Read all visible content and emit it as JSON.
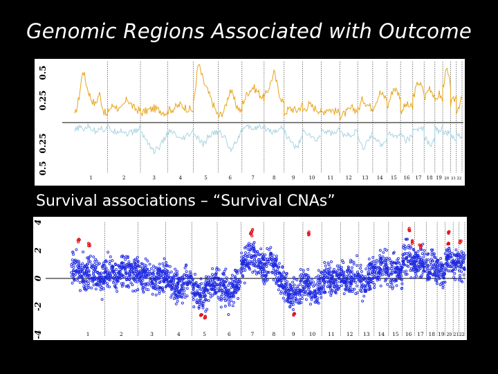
{
  "title": "Genomic Regions Associated with Outcome",
  "subtitle": "Survival associations – “Survival CNAs”",
  "chromosomes": [
    "1",
    "2",
    "3",
    "4",
    "5",
    "6",
    "7",
    "8",
    "9",
    "10",
    "11",
    "12",
    "13",
    "14",
    "15",
    "16",
    "17",
    "18",
    "19",
    "20",
    "21",
    "22"
  ],
  "colors": {
    "gain": "#e8a317",
    "loss": "#a9d3e0",
    "survival_points": "#1f2ae0",
    "significant_points": "#e0101a",
    "chromosome_boundary": "#555555"
  },
  "chart_data": [
    {
      "type": "area",
      "title": "",
      "y_ticks_top": [
        "0.5",
        "0.25"
      ],
      "y_ticks_bottom": [
        "0.25",
        "0.5"
      ],
      "ylim": [
        -0.5,
        0.5
      ],
      "series": [
        {
          "name": "",
          "color": "#e8a317",
          "values_by_chromosome": [
            [
              0.05,
              0.2,
              0.45,
              0.3,
              0.2,
              0.15,
              0.25,
              0.1,
              0.05
            ],
            [
              0.1,
              0.15,
              0.1,
              0.2,
              0.12,
              0.1
            ],
            [
              0.08,
              0.1,
              0.12,
              0.1,
              0.08
            ],
            [
              0.1,
              0.12,
              0.15,
              0.12,
              0.1
            ],
            [
              0.15,
              0.5,
              0.35,
              0.25,
              0.15,
              0.05
            ],
            [
              0.05,
              0.1,
              0.28,
              0.15,
              0.08
            ],
            [
              0.15,
              0.25,
              0.3,
              0.25,
              0.2
            ],
            [
              0.2,
              0.3,
              0.42,
              0.25,
              0.15
            ],
            [
              0.08,
              0.12,
              0.1,
              0.15
            ],
            [
              0.1,
              0.15,
              0.12,
              0.1
            ],
            [
              0.08,
              0.12,
              0.1,
              0.08
            ],
            [
              0.05,
              0.08,
              0.12,
              0.1
            ],
            [
              0.1,
              0.2,
              0.15,
              0.12
            ],
            [
              0.12,
              0.25,
              0.2
            ],
            [
              0.12,
              0.3,
              0.22
            ],
            [
              0.1,
              0.15,
              0.12
            ],
            [
              0.2,
              0.35,
              0.25
            ],
            [
              0.2,
              0.3,
              0.22
            ],
            [
              0.15,
              0.25,
              0.18
            ],
            [
              0.3,
              0.45,
              0.3
            ],
            [
              0.15,
              0.22
            ],
            [
              0.1,
              0.2
            ]
          ]
        },
        {
          "name": "",
          "color": "#a9d3e0",
          "values_by_chromosome": [
            [
              -0.1,
              -0.05,
              -0.08,
              -0.04,
              -0.06,
              -0.1,
              -0.05,
              -0.08,
              -0.05
            ],
            [
              -0.05,
              -0.1,
              -0.08,
              -0.12,
              -0.1,
              -0.06
            ],
            [
              -0.1,
              -0.2,
              -0.32,
              -0.25,
              -0.12
            ],
            [
              -0.1,
              -0.12,
              -0.2,
              -0.15,
              -0.1
            ],
            [
              -0.12,
              -0.18,
              -0.25,
              -0.15,
              -0.12,
              -0.1
            ],
            [
              -0.1,
              -0.15,
              -0.3,
              -0.2,
              -0.1
            ],
            [
              -0.08,
              -0.05,
              -0.06,
              -0.05,
              -0.08
            ],
            [
              -0.05,
              -0.08,
              -0.1,
              -0.06,
              -0.05
            ],
            [
              -0.1,
              -0.2,
              -0.28,
              -0.15
            ],
            [
              -0.1,
              -0.12,
              -0.2,
              -0.15
            ],
            [
              -0.08,
              -0.1,
              -0.12,
              -0.08
            ],
            [
              -0.1,
              -0.15,
              -0.12,
              -0.1
            ],
            [
              -0.15,
              -0.3,
              -0.2,
              -0.12
            ],
            [
              -0.12,
              -0.25,
              -0.18
            ],
            [
              -0.1,
              -0.15,
              -0.12
            ],
            [
              -0.12,
              -0.2,
              -0.15
            ],
            [
              -0.05,
              -0.08,
              -0.06
            ],
            [
              -0.15,
              -0.25,
              -0.2
            ],
            [
              -0.05,
              -0.1,
              -0.06
            ],
            [
              -0.08,
              -0.12,
              -0.1
            ],
            [
              -0.15,
              -0.2
            ],
            [
              -0.1,
              -0.18
            ]
          ]
        }
      ]
    },
    {
      "type": "scatter",
      "title": "",
      "y_ticks": [
        "4",
        "2",
        "0",
        "-2",
        "-4"
      ],
      "ylim": [
        -4,
        4
      ],
      "series": [
        {
          "name": "",
          "color": "#1f2ae0",
          "levels_by_chromosome": [
            [
              0.3,
              0.8,
              0.5,
              0.4,
              0.2,
              0.6,
              0.3,
              -0.3,
              0.2
            ],
            [
              0.4,
              0.6,
              0.2,
              0.8,
              0.4,
              0.3
            ],
            [
              0.2,
              0.3,
              0.1,
              -0.2,
              0.3
            ],
            [
              0.2,
              -0.3,
              -0.6,
              -0.2,
              0.1
            ],
            [
              -0.5,
              -1.0,
              -1.4,
              -0.8,
              -0.4,
              -0.2
            ],
            [
              -0.3,
              -0.6,
              -1.2,
              -0.5,
              -0.2
            ],
            [
              0.8,
              1.4,
              1.8,
              1.2,
              0.9
            ],
            [
              0.6,
              1.2,
              0.9,
              0.4,
              -0.4
            ],
            [
              -0.6,
              -1.2,
              -0.9,
              -0.5
            ],
            [
              -0.2,
              -0.6,
              -0.9,
              -0.4
            ],
            [
              -0.2,
              0.2,
              -0.3,
              0.3
            ],
            [
              0.2,
              -0.4,
              0.3,
              0.1
            ],
            [
              0.4,
              -0.5,
              0.2,
              0.5
            ],
            [
              0.3,
              0.9,
              0.4
            ],
            [
              0.2,
              0.6,
              0.3
            ],
            [
              1.2,
              1.6,
              1.0
            ],
            [
              0.9,
              1.3,
              0.8
            ],
            [
              0.5,
              1.0,
              0.6
            ],
            [
              0.8,
              0.4,
              0.3
            ],
            [
              0.9,
              1.4,
              1.0
            ],
            [
              0.8,
              1.6
            ],
            [
              0.6,
              1.4
            ]
          ]
        },
        {
          "name": "",
          "color": "#e0101a",
          "points": [
            {
              "chromosome": "1",
              "value": 2.7
            },
            {
              "chromosome": "1",
              "value": 2.4
            },
            {
              "chromosome": "5",
              "value": -2.6
            },
            {
              "chromosome": "5",
              "value": -2.8
            },
            {
              "chromosome": "7",
              "value": 3.4
            },
            {
              "chromosome": "7",
              "value": 3.1
            },
            {
              "chromosome": "9",
              "value": -2.6
            },
            {
              "chromosome": "10",
              "value": 3.2
            },
            {
              "chromosome": "16",
              "value": 3.5
            },
            {
              "chromosome": "16",
              "value": 2.6
            },
            {
              "chromosome": "17",
              "value": 2.3
            },
            {
              "chromosome": "20",
              "value": 3.3
            },
            {
              "chromosome": "20",
              "value": 2.4
            },
            {
              "chromosome": "22",
              "value": 2.6
            }
          ]
        }
      ]
    }
  ]
}
